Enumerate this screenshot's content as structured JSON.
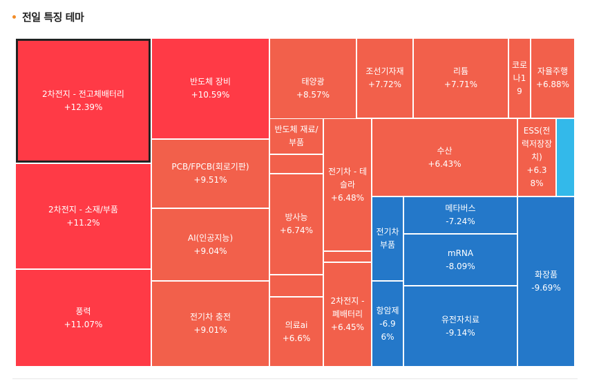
{
  "header": {
    "title": "전일 특징 테마"
  },
  "chart_data": {
    "type": "treemap",
    "tiles": [
      {
        "name": "2차전지 - 전고체배터리",
        "value": "+12.39%",
        "pct": 12.39,
        "color": "#ff3a46",
        "selected": true
      },
      {
        "name": "반도체 장비",
        "value": "+10.59%",
        "pct": 10.59,
        "color": "#ff3a46"
      },
      {
        "name": "태양광",
        "value": "+8.57%",
        "pct": 8.57,
        "color": "#f2604b"
      },
      {
        "name": "조선기자재",
        "value": "+7.72%",
        "pct": 7.72,
        "color": "#f2604b"
      },
      {
        "name": "리튬",
        "value": "+7.71%",
        "pct": 7.71,
        "color": "#f2604b"
      },
      {
        "name": "코로나19",
        "value": "",
        "pct": null,
        "color": "#f2604b"
      },
      {
        "name": "자율주행",
        "value": "+6.88%",
        "pct": 6.88,
        "color": "#f2604b"
      },
      {
        "name": "2차전지 - 소재/부품",
        "value": "+11.2%",
        "pct": 11.2,
        "color": "#ff3a46"
      },
      {
        "name": "PCB/FPCB(회로기판)",
        "value": "+9.51%",
        "pct": 9.51,
        "color": "#f2604b"
      },
      {
        "name": "반도체 재료/부품",
        "value": "",
        "pct": null,
        "color": "#f2604b"
      },
      {
        "name": "전기차 - 테슬라",
        "value": "+6.48%",
        "pct": 6.48,
        "color": "#f2604b"
      },
      {
        "name": "수산",
        "value": "+6.43%",
        "pct": 6.43,
        "color": "#f2604b"
      },
      {
        "name": "ESS(전력저장장치)",
        "value": "+6.38%",
        "pct": 6.38,
        "color": "#f2604b"
      },
      {
        "name": "",
        "value": "",
        "pct": null,
        "color": "#33b9ea"
      },
      {
        "name": "",
        "value": "",
        "pct": null,
        "color": "#f2604b"
      },
      {
        "name": "방사능",
        "value": "+6.74%",
        "pct": 6.74,
        "color": "#f2604b"
      },
      {
        "name": "AI(인공지능)",
        "value": "+9.04%",
        "pct": 9.04,
        "color": "#f2604b"
      },
      {
        "name": "전기차 부품",
        "value": "",
        "pct": null,
        "color": "#2478c9"
      },
      {
        "name": "메타버스",
        "value": "-7.24%",
        "pct": -7.24,
        "color": "#2478c9"
      },
      {
        "name": "mRNA",
        "value": "-8.09%",
        "pct": -8.09,
        "color": "#2478c9"
      },
      {
        "name": "화장품",
        "value": "-9.69%",
        "pct": -9.69,
        "color": "#2478c9"
      },
      {
        "name": "",
        "value": "",
        "pct": null,
        "color": "#f2604b"
      },
      {
        "name": "",
        "value": "",
        "pct": null,
        "color": "#f2604b"
      },
      {
        "name": "2차전지 - 폐배터리",
        "value": "+6.45%",
        "pct": 6.45,
        "color": "#f2604b"
      },
      {
        "name": "풍력",
        "value": "+11.07%",
        "pct": 11.07,
        "color": "#ff3a46"
      },
      {
        "name": "전기차 충전",
        "value": "+9.01%",
        "pct": 9.01,
        "color": "#f2604b"
      },
      {
        "name": "의료ai",
        "value": "+6.6%",
        "pct": 6.6,
        "color": "#f2604b"
      },
      {
        "name": "항암제",
        "value": "-6.96%",
        "pct": -6.96,
        "color": "#2478c9"
      },
      {
        "name": "유전자치료",
        "value": "-9.14%",
        "pct": -9.14,
        "color": "#2478c9"
      }
    ]
  }
}
